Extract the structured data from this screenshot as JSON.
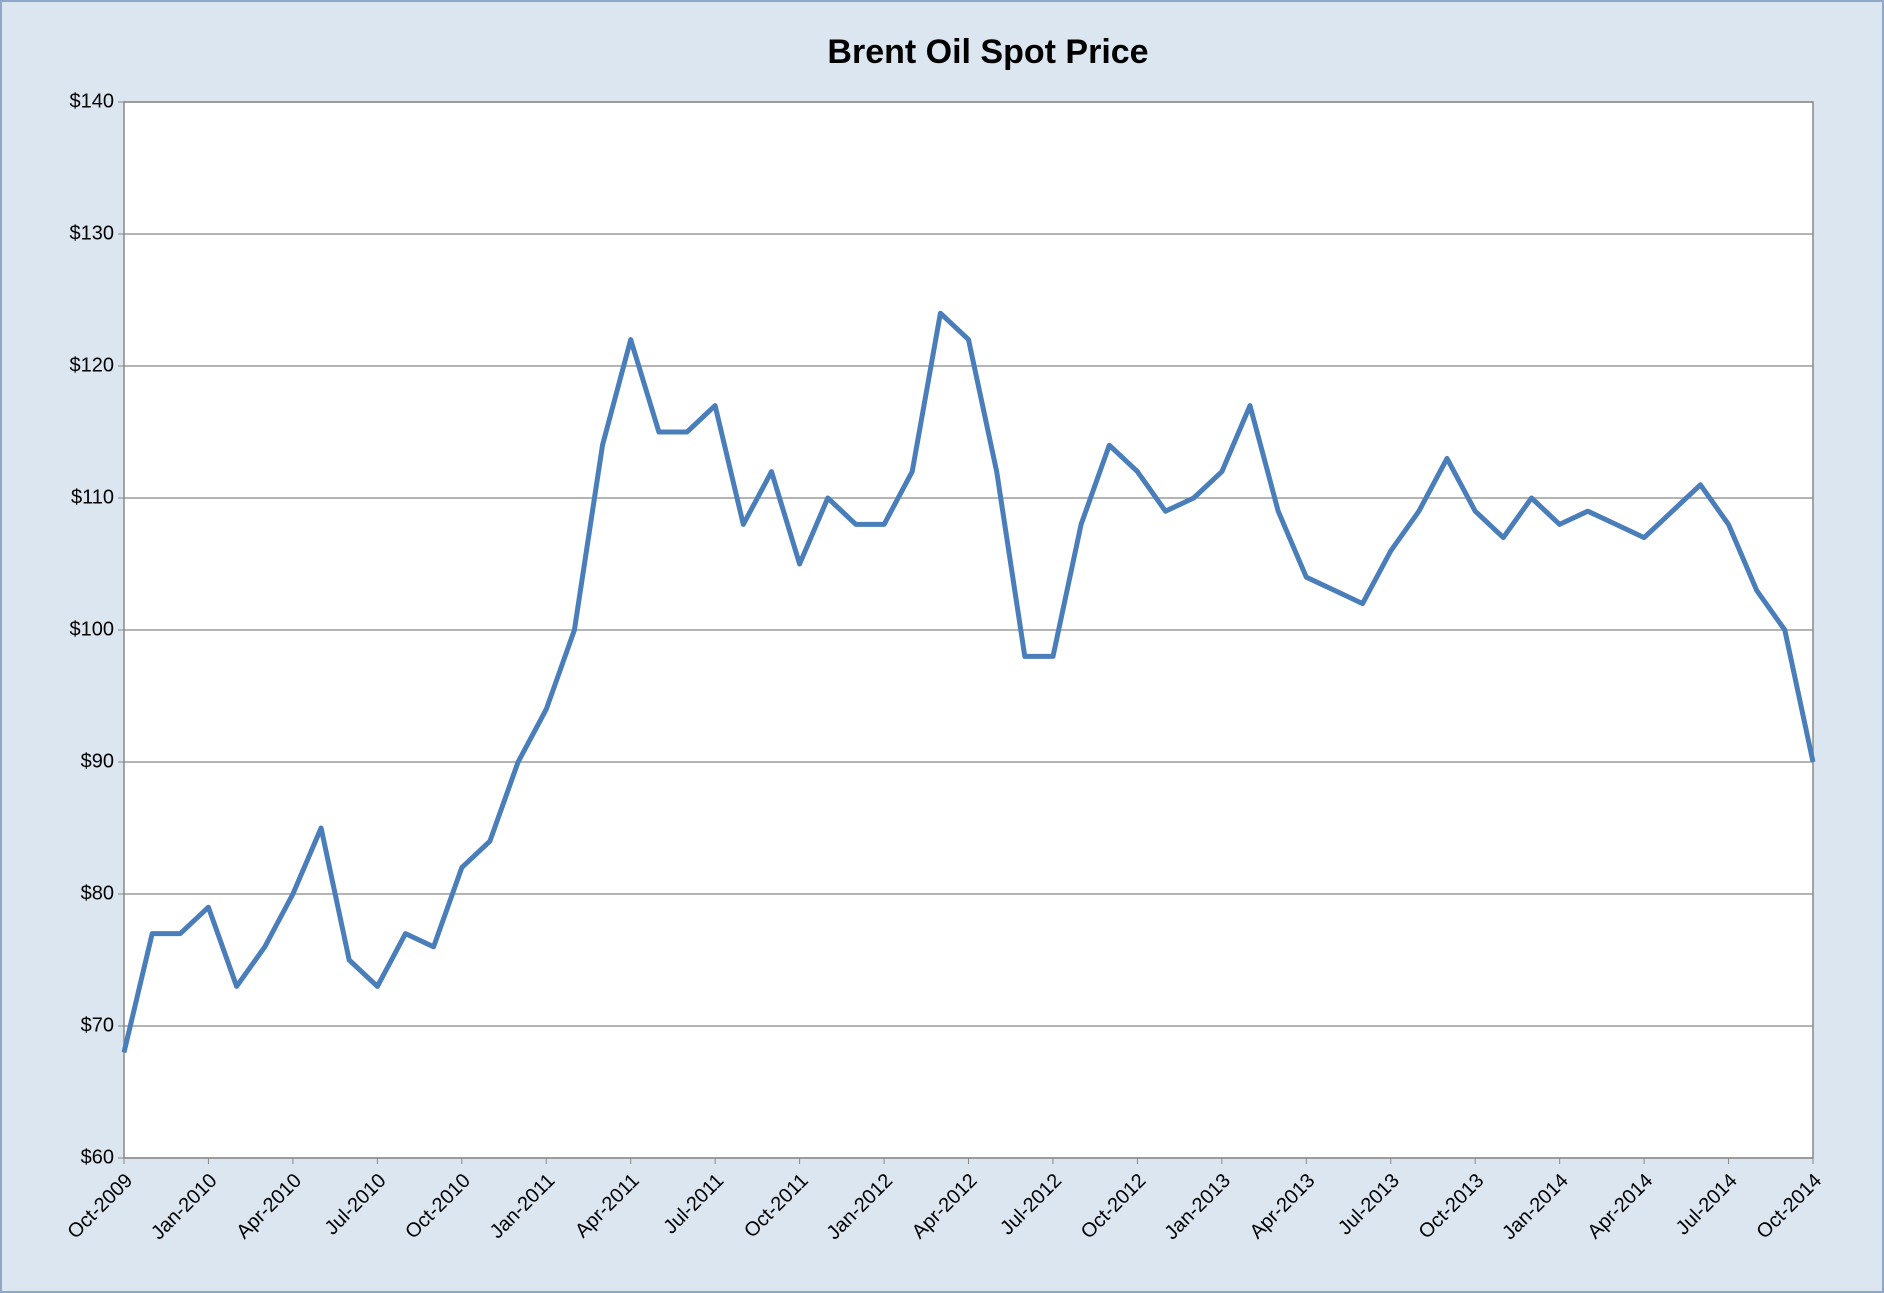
{
  "chart_data": {
    "type": "line",
    "title": "Brent Oil Spot Price",
    "x": [
      "2009-10",
      "2009-11",
      "2009-12",
      "2010-01",
      "2010-02",
      "2010-03",
      "2010-04",
      "2010-05",
      "2010-06",
      "2010-07",
      "2010-08",
      "2010-09",
      "2010-10",
      "2010-11",
      "2010-12",
      "2011-01",
      "2011-02",
      "2011-03",
      "2011-04",
      "2011-05",
      "2011-06",
      "2011-07",
      "2011-08",
      "2011-09",
      "2011-10",
      "2011-11",
      "2011-12",
      "2012-01",
      "2012-02",
      "2012-03",
      "2012-04",
      "2012-05",
      "2012-06",
      "2012-07",
      "2012-08",
      "2012-09",
      "2012-10",
      "2012-11",
      "2012-12",
      "2013-01",
      "2013-02",
      "2013-03",
      "2013-04",
      "2013-05",
      "2013-06",
      "2013-07",
      "2013-08",
      "2013-09",
      "2013-10",
      "2013-11",
      "2013-12",
      "2014-01",
      "2014-02",
      "2014-03",
      "2014-04",
      "2014-05",
      "2014-06",
      "2014-07",
      "2014-08",
      "2014-09",
      "2014-10"
    ],
    "series": [
      {
        "name": "Brent",
        "color": "#4a7ebb",
        "values": [
          68,
          77,
          77,
          79,
          73,
          76,
          80,
          85,
          75,
          73,
          77,
          76,
          82,
          84,
          90,
          94,
          100,
          114,
          122,
          115,
          115,
          117,
          108,
          112,
          105,
          110,
          108,
          108,
          112,
          124,
          122,
          112,
          98,
          98,
          108,
          114,
          112,
          109,
          110,
          112,
          117,
          109,
          104,
          103,
          102,
          106,
          109,
          113,
          109,
          107,
          110,
          108,
          109,
          108,
          107,
          109,
          111,
          108,
          103,
          100,
          90
        ]
      }
    ],
    "xlim": [
      "2009-10",
      "2014-10"
    ],
    "xticks": [
      {
        "value": "2009-10",
        "label": "Oct-2009"
      },
      {
        "value": "2010-01",
        "label": "Jan-2010"
      },
      {
        "value": "2010-04",
        "label": "Apr-2010"
      },
      {
        "value": "2010-07",
        "label": "Jul-2010"
      },
      {
        "value": "2010-10",
        "label": "Oct-2010"
      },
      {
        "value": "2011-01",
        "label": "Jan-2011"
      },
      {
        "value": "2011-04",
        "label": "Apr-2011"
      },
      {
        "value": "2011-07",
        "label": "Jul-2011"
      },
      {
        "value": "2011-10",
        "label": "Oct-2011"
      },
      {
        "value": "2012-01",
        "label": "Jan-2012"
      },
      {
        "value": "2012-04",
        "label": "Apr-2012"
      },
      {
        "value": "2012-07",
        "label": "Jul-2012"
      },
      {
        "value": "2012-10",
        "label": "Oct-2012"
      },
      {
        "value": "2013-01",
        "label": "Jan-2013"
      },
      {
        "value": "2013-04",
        "label": "Apr-2013"
      },
      {
        "value": "2013-07",
        "label": "Jul-2013"
      },
      {
        "value": "2013-10",
        "label": "Oct-2013"
      },
      {
        "value": "2014-01",
        "label": "Jan-2014"
      },
      {
        "value": "2014-04",
        "label": "Apr-2014"
      },
      {
        "value": "2014-07",
        "label": "Jul-2014"
      },
      {
        "value": "2014-10",
        "label": "Oct-2014"
      }
    ],
    "ylim": [
      60,
      140
    ],
    "yticks": [
      {
        "value": 60,
        "label": "$60"
      },
      {
        "value": 70,
        "label": "$70"
      },
      {
        "value": 80,
        "label": "$80"
      },
      {
        "value": 90,
        "label": "$90"
      },
      {
        "value": 100,
        "label": "$100"
      },
      {
        "value": 110,
        "label": "$110"
      },
      {
        "value": 120,
        "label": "$120"
      },
      {
        "value": 130,
        "label": "$130"
      },
      {
        "value": 140,
        "label": "$140"
      }
    ],
    "grid": true
  }
}
